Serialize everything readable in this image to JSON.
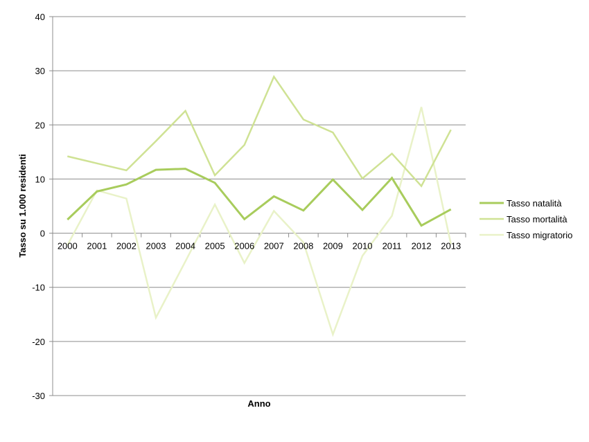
{
  "chart_data": {
    "type": "line",
    "title": "",
    "xlabel": "Anno",
    "ylabel": "Tasso su 1.000 residenti",
    "ylim": [
      -30,
      40
    ],
    "yticks": [
      40,
      30,
      20,
      10,
      0,
      -10,
      -20,
      -30
    ],
    "grid": true,
    "legend_position": "right",
    "categories": [
      "2000",
      "2001",
      "2002",
      "2003",
      "2004",
      "2005",
      "2006",
      "2007",
      "2008",
      "2009",
      "2010",
      "2011",
      "2012",
      "2013"
    ],
    "series": [
      {
        "name": "Tasso natalità",
        "color": "#a8cc5c",
        "width": 3,
        "values": [
          2.5,
          7.7,
          9.0,
          11.7,
          11.9,
          9.3,
          2.6,
          6.8,
          4.2,
          9.9,
          4.3,
          10.2,
          1.4,
          4.4
        ]
      },
      {
        "name": "Tasso mortalità",
        "color": "#cfe294",
        "width": 2.5,
        "values": [
          14.2,
          12.9,
          11.6,
          17.0,
          22.6,
          10.7,
          16.3,
          28.9,
          21.0,
          18.6,
          10.1,
          14.7,
          8.7,
          19.1
        ]
      },
      {
        "name": "Tasso migratorio",
        "color": "#e9f2c8",
        "width": 2.5,
        "values": [
          -2.2,
          7.9,
          6.4,
          -15.6,
          -5.2,
          5.3,
          -5.5,
          4.1,
          -1.7,
          -18.7,
          -4.2,
          3.2,
          23.3,
          -2.0
        ]
      }
    ]
  }
}
